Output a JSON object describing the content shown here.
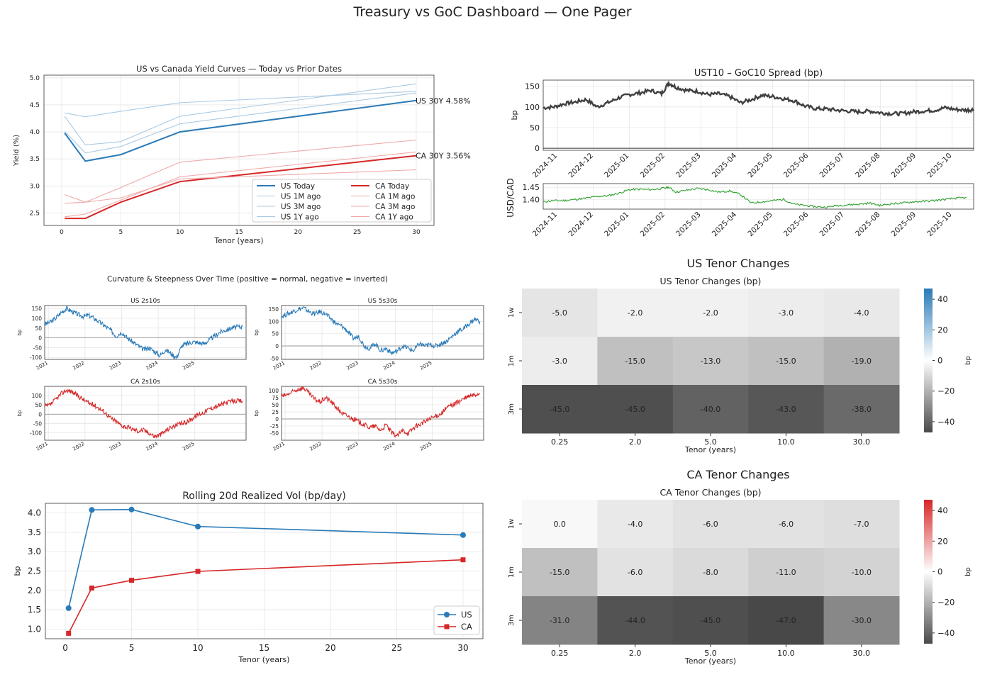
{
  "page": {
    "title": "Treasury vs GoC Dashboard — One Pager"
  },
  "colors": {
    "us": "#2a7ab8",
    "ca": "#d62728",
    "fx": "#2ca02c",
    "spread": "#404040"
  },
  "chart_data": [
    {
      "id": "yield_curves",
      "type": "line",
      "title": "US vs Canada Yield Curves — Today vs Prior Dates",
      "xlabel": "Tenor (years)",
      "ylabel": "Yield (%)",
      "xlim": [
        -1.5,
        31.5
      ],
      "ylim": [
        2.27,
        5.05
      ],
      "xticks": [
        0,
        5,
        10,
        15,
        20,
        25,
        30
      ],
      "yticks": [
        2.5,
        3.0,
        3.5,
        4.0,
        4.5,
        5.0
      ],
      "x": [
        0.25,
        2,
        5,
        10,
        30
      ],
      "series": [
        {
          "name": "US Today",
          "country": "US",
          "emphasis": true,
          "values": [
            3.98,
            3.46,
            3.58,
            4.0,
            4.58
          ]
        },
        {
          "name": "US 1M ago",
          "country": "US",
          "values": [
            4.01,
            3.61,
            3.73,
            4.15,
            4.72
          ]
        },
        {
          "name": "US 3M ago",
          "country": "US",
          "values": [
            4.29,
            3.76,
            3.82,
            4.29,
            4.89
          ]
        },
        {
          "name": "US 1Y ago",
          "country": "US",
          "values": [
            4.35,
            4.28,
            4.38,
            4.54,
            4.75
          ]
        },
        {
          "name": "CA Today",
          "country": "CA",
          "emphasis": true,
          "values": [
            2.4,
            2.4,
            2.7,
            3.08,
            3.56
          ]
        },
        {
          "name": "CA 1M ago",
          "country": "CA",
          "values": [
            2.43,
            2.48,
            2.74,
            3.17,
            3.63
          ]
        },
        {
          "name": "CA 3M ago",
          "country": "CA",
          "values": [
            2.68,
            2.7,
            2.78,
            3.13,
            3.3
          ]
        },
        {
          "name": "CA 1Y ago",
          "country": "CA",
          "values": [
            2.84,
            2.7,
            2.97,
            3.44,
            3.85
          ]
        }
      ],
      "annotations": [
        {
          "text": "US 30Y 4.58%",
          "country": "US",
          "x": 30,
          "y": 4.58
        },
        {
          "text": "CA 30Y 3.56%",
          "country": "CA",
          "x": 30,
          "y": 3.56
        }
      ],
      "legend": "bottom-right"
    },
    {
      "id": "spread",
      "type": "line",
      "title": "UST10 – GoC10 Spread (bp)",
      "ylabel": "bp",
      "xlim": [
        0,
        12
      ],
      "ylim": [
        -5,
        165
      ],
      "yticks": [
        0,
        50,
        100,
        150
      ],
      "xtick_labels": [
        "2024-11",
        "2024-12",
        "2025-01",
        "2025-02",
        "2025-03",
        "2025-04",
        "2025-05",
        "2025-06",
        "2025-07",
        "2025-08",
        "2025-09",
        "2025-10"
      ],
      "x": [
        0.0,
        0.3,
        0.6,
        0.9,
        1.2,
        1.5,
        1.8,
        2.1,
        2.4,
        2.7,
        3.0,
        3.3,
        3.5,
        3.7,
        4.0,
        4.3,
        4.6,
        4.9,
        5.2,
        5.5,
        5.8,
        6.1,
        6.4,
        6.7,
        7.0,
        7.3,
        7.6,
        7.9,
        8.2,
        8.5,
        8.8,
        9.1,
        9.4,
        9.7,
        10.0,
        10.3,
        10.6,
        10.9,
        11.2,
        11.5,
        11.8,
        12.0
      ],
      "values": [
        98,
        100,
        108,
        112,
        118,
        100,
        110,
        122,
        130,
        134,
        140,
        132,
        158,
        148,
        140,
        138,
        130,
        132,
        125,
        110,
        118,
        128,
        125,
        120,
        115,
        102,
        96,
        95,
        92,
        90,
        88,
        90,
        86,
        84,
        84,
        88,
        90,
        92,
        98,
        94,
        92,
        94
      ],
      "baseline": 0
    },
    {
      "id": "fx",
      "type": "line",
      "ylabel": "USD/CAD",
      "xlim": [
        0,
        12
      ],
      "ylim": [
        1.36,
        1.465
      ],
      "yticks": [
        1.4,
        1.45
      ],
      "xtick_labels": [
        "2024-11",
        "2024-12",
        "2025-01",
        "2025-02",
        "2025-03",
        "2025-04",
        "2025-05",
        "2025-06",
        "2025-07",
        "2025-08",
        "2025-09",
        "2025-10"
      ],
      "x": [
        0.0,
        0.3,
        0.6,
        0.9,
        1.2,
        1.5,
        1.8,
        2.1,
        2.4,
        2.7,
        3.0,
        3.3,
        3.5,
        3.7,
        4.0,
        4.3,
        4.6,
        4.9,
        5.2,
        5.5,
        5.8,
        6.1,
        6.4,
        6.7,
        7.0,
        7.3,
        7.6,
        7.9,
        8.2,
        8.5,
        8.8,
        9.1,
        9.4,
        9.7,
        10.0,
        10.3,
        10.6,
        10.9,
        11.2,
        11.5,
        11.8
      ],
      "values": [
        1.39,
        1.395,
        1.395,
        1.4,
        1.405,
        1.412,
        1.415,
        1.425,
        1.44,
        1.442,
        1.44,
        1.445,
        1.45,
        1.43,
        1.438,
        1.445,
        1.44,
        1.43,
        1.435,
        1.42,
        1.385,
        1.39,
        1.395,
        1.4,
        1.38,
        1.375,
        1.37,
        1.368,
        1.375,
        1.378,
        1.38,
        1.385,
        1.375,
        1.382,
        1.385,
        1.39,
        1.392,
        1.395,
        1.4,
        1.405,
        1.407
      ]
    },
    {
      "id": "curvature",
      "type": "line",
      "title": "Curvature & Steepness Over Time (positive = normal, negative = inverted)",
      "xtick_labels": [
        "2021",
        "2022",
        "2023",
        "2024",
        "2025"
      ],
      "ylabel": "bp",
      "panels": [
        {
          "title": "US 2s10s",
          "country": "US",
          "ylim": [
            -110,
            165
          ],
          "yticks": [
            -100,
            -50,
            0,
            50,
            100,
            150
          ],
          "x": [
            0.0,
            0.15,
            0.3,
            0.45,
            0.6,
            0.75,
            0.9,
            1.05,
            1.2,
            1.35,
            1.5,
            1.65,
            1.8,
            1.95,
            2.1,
            2.25,
            2.4,
            2.55,
            2.7,
            2.85,
            3.0,
            3.15,
            3.3,
            3.45,
            3.6,
            3.75,
            3.9,
            4.05,
            4.2,
            4.35,
            4.5,
            4.65,
            4.8,
            4.95,
            5.1,
            5.25,
            5.4
          ],
          "values": [
            70,
            80,
            100,
            130,
            150,
            135,
            120,
            110,
            115,
            100,
            80,
            60,
            40,
            10,
            30,
            0,
            -20,
            -40,
            -60,
            -50,
            -70,
            -90,
            -60,
            -80,
            -100,
            -40,
            -30,
            -20,
            -25,
            -30,
            -10,
            10,
            30,
            40,
            50,
            55,
            58
          ]
        },
        {
          "title": "US 5s30s",
          "country": "US",
          "ylim": [
            -55,
            165
          ],
          "yticks": [
            -50,
            0,
            50,
            100,
            150
          ],
          "x": [
            0.0,
            0.15,
            0.3,
            0.45,
            0.6,
            0.75,
            0.9,
            1.05,
            1.2,
            1.35,
            1.5,
            1.65,
            1.8,
            1.95,
            2.1,
            2.25,
            2.4,
            2.55,
            2.7,
            2.85,
            3.0,
            3.15,
            3.3,
            3.45,
            3.6,
            3.75,
            3.9,
            4.05,
            4.2,
            4.35,
            4.5,
            4.65,
            4.8,
            4.95,
            5.1,
            5.25,
            5.4
          ],
          "values": [
            120,
            130,
            140,
            150,
            155,
            140,
            130,
            140,
            130,
            110,
            90,
            80,
            60,
            30,
            40,
            0,
            -10,
            10,
            -20,
            -10,
            -30,
            -20,
            0,
            -10,
            -20,
            10,
            0,
            5,
            0,
            10,
            20,
            40,
            60,
            70,
            90,
            110,
            100
          ]
        },
        {
          "title": "CA 2s10s",
          "country": "CA",
          "ylim": [
            -140,
            150
          ],
          "yticks": [
            -100,
            -50,
            0,
            50,
            100
          ],
          "x": [
            0.0,
            0.15,
            0.3,
            0.45,
            0.6,
            0.75,
            0.9,
            1.05,
            1.2,
            1.35,
            1.5,
            1.65,
            1.8,
            1.95,
            2.1,
            2.25,
            2.4,
            2.55,
            2.7,
            2.85,
            3.0,
            3.15,
            3.3,
            3.45,
            3.6,
            3.75,
            3.9,
            4.05,
            4.2,
            4.35,
            4.5,
            4.65,
            4.8,
            4.95,
            5.1,
            5.25,
            5.4
          ],
          "values": [
            40,
            50,
            80,
            110,
            130,
            120,
            100,
            80,
            60,
            50,
            30,
            10,
            -20,
            -40,
            -60,
            -70,
            -80,
            -90,
            -85,
            -100,
            -120,
            -110,
            -90,
            -70,
            -60,
            -50,
            -40,
            -20,
            0,
            10,
            30,
            40,
            50,
            60,
            70,
            72,
            70
          ]
        },
        {
          "title": "CA 5s30s",
          "country": "CA",
          "ylim": [
            -75,
            115
          ],
          "yticks": [
            -50,
            -25,
            0,
            25,
            50,
            75,
            100
          ],
          "x": [
            0.0,
            0.15,
            0.3,
            0.45,
            0.6,
            0.75,
            0.9,
            1.05,
            1.2,
            1.35,
            1.5,
            1.65,
            1.8,
            1.95,
            2.1,
            2.25,
            2.4,
            2.55,
            2.7,
            2.85,
            3.0,
            3.15,
            3.3,
            3.45,
            3.6,
            3.75,
            3.9,
            4.05,
            4.2,
            4.35,
            4.5,
            4.65,
            4.8,
            4.95,
            5.1,
            5.25,
            5.4
          ],
          "values": [
            80,
            85,
            95,
            105,
            110,
            90,
            70,
            60,
            75,
            60,
            40,
            20,
            10,
            0,
            -10,
            -20,
            -30,
            -25,
            -40,
            -20,
            -50,
            -60,
            -40,
            -50,
            -30,
            -20,
            -10,
            0,
            10,
            20,
            40,
            50,
            60,
            70,
            80,
            85,
            90
          ]
        }
      ]
    },
    {
      "id": "realized_vol",
      "type": "line",
      "title": "Rolling 20d Realized Vol (bp/day)",
      "xlabel": "Tenor (years)",
      "ylabel": "bp",
      "xlim": [
        -1.5,
        31.5
      ],
      "ylim": [
        0.75,
        4.25
      ],
      "xticks": [
        0,
        5,
        10,
        15,
        20,
        25,
        30
      ],
      "yticks": [
        1.0,
        1.5,
        2.0,
        2.5,
        3.0,
        3.5,
        4.0
      ],
      "x": [
        0.25,
        2,
        5,
        10,
        30
      ],
      "series": [
        {
          "name": "US",
          "country": "US",
          "marker": "circle",
          "values": [
            1.54,
            4.08,
            4.09,
            3.65,
            3.43
          ]
        },
        {
          "name": "CA",
          "country": "CA",
          "marker": "square",
          "values": [
            0.89,
            2.06,
            2.26,
            2.49,
            2.79
          ]
        }
      ],
      "legend": "bottom-right"
    },
    {
      "id": "us_heatmap",
      "type": "heatmap",
      "panel_title": "US Tenor Changes",
      "title": "US Tenor Changes (bp)",
      "xlabel": "Tenor (years)",
      "colorbar_label": "bp",
      "colorbar_ticks": [
        40,
        20,
        0,
        -20,
        -40
      ],
      "vmin": -47,
      "vmax": 47,
      "x": [
        "0.25",
        "2.0",
        "5.0",
        "10.0",
        "30.0"
      ],
      "y": [
        "1w",
        "1m",
        "3m"
      ],
      "values": [
        [
          -5.0,
          -2.0,
          -2.0,
          -3.0,
          -4.0
        ],
        [
          -3.0,
          -15.0,
          -13.0,
          -15.0,
          -19.0
        ],
        [
          -45.0,
          -45.0,
          -40.0,
          -43.0,
          -38.0
        ]
      ],
      "labels": [
        [
          "-5.0",
          "-2.0",
          "-2.0",
          "-3.0",
          "-4.0"
        ],
        [
          "-3.0",
          "-15.0",
          "-13.0",
          "-15.0",
          "-19.0"
        ],
        [
          "-45.0",
          "-45.0",
          "-40.0",
          "-43.0",
          "-38.0"
        ]
      ]
    },
    {
      "id": "ca_heatmap",
      "type": "heatmap",
      "panel_title": "CA Tenor Changes",
      "title": "CA Tenor Changes (bp)",
      "xlabel": "Tenor (years)",
      "colorbar_label": "bp",
      "colorbar_ticks": [
        40,
        20,
        0,
        -20,
        -40
      ],
      "vmin": -47,
      "vmax": 47,
      "x": [
        "0.25",
        "2.0",
        "5.0",
        "10.0",
        "30.0"
      ],
      "y": [
        "1w",
        "1m",
        "3m"
      ],
      "values": [
        [
          0.0,
          -4.0,
          -6.0,
          -6.0,
          -7.0
        ],
        [
          -15.0,
          -6.0,
          -8.0,
          -11.0,
          -10.0
        ],
        [
          -31.0,
          -44.0,
          -45.0,
          -47.0,
          -30.0
        ]
      ],
      "labels": [
        [
          "0.0",
          "-4.0",
          "-6.0",
          "-6.0",
          "-7.0"
        ],
        [
          "-15.0",
          "-6.0",
          "-8.0",
          "-11.0",
          "-10.0"
        ],
        [
          "-31.0",
          "-44.0",
          "-45.0",
          "-47.0",
          "-30.0"
        ]
      ]
    }
  ]
}
